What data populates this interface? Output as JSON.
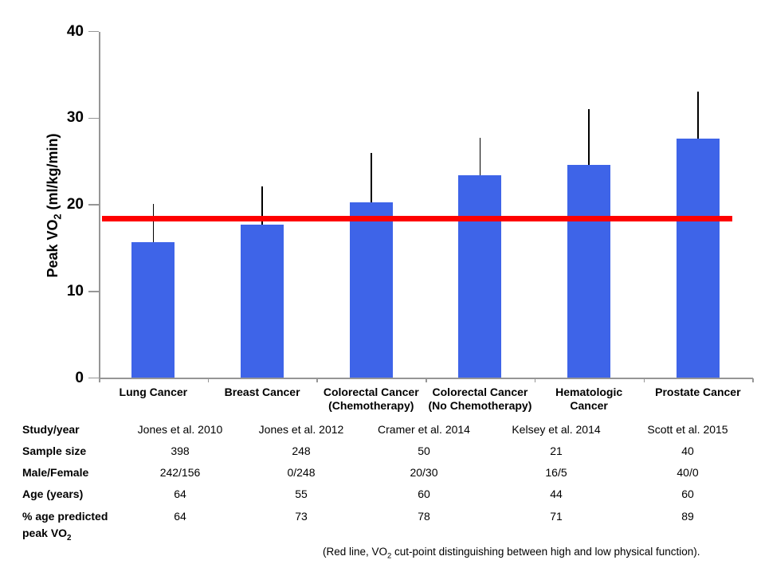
{
  "chart_data": {
    "type": "bar",
    "title": "",
    "xlabel": "",
    "ylabel": "Peak VO2 (ml/kg/min)",
    "ylim": [
      0,
      40
    ],
    "y_ticks": [
      0,
      10,
      20,
      30,
      40
    ],
    "grid": false,
    "legend": "none",
    "bar_color": "#3E64E8",
    "error_bar_color": "#000000",
    "axis_color": "#969696",
    "categories": [
      "Lung Cancer",
      "Breast Cancer",
      "Colorectal Cancer (Chemotherapy)",
      "Colorectal Cancer (No Chemotherapy)",
      "Hematologic Cancer",
      "Prostate Cancer"
    ],
    "category_lines": [
      [
        "Lung Cancer"
      ],
      [
        "Breast Cancer"
      ],
      [
        "Colorectal Cancer",
        "(Chemotherapy)"
      ],
      [
        "Colorectal Cancer",
        "(No Chemotherapy)"
      ],
      [
        "Hematologic",
        "Cancer"
      ],
      [
        "Prostate Cancer"
      ]
    ],
    "values": [
      15.7,
      17.7,
      20.3,
      23.4,
      24.6,
      27.6
    ],
    "error_upper": [
      20.1,
      22.1,
      26.0,
      27.7,
      31.0,
      33.1
    ],
    "reference_line": {
      "value": 18.4,
      "color": "#FE0000"
    }
  },
  "table": {
    "row_headers": [
      [
        "Study/year"
      ],
      [
        "Sample size"
      ],
      [
        "Male/Female"
      ],
      [
        "Age (years)"
      ],
      [
        "% age predicted",
        "peak VO2"
      ]
    ],
    "column_keys": [
      "study_year",
      "sample_size",
      "male_female",
      "age_years",
      "pct_age_predicted_peak_vo2"
    ],
    "columns": [
      {
        "study_year": "Jones et al. 2010",
        "sample_size": "398",
        "male_female": "242/156",
        "age_years": "64",
        "pct_age_predicted_peak_vo2": "64"
      },
      {
        "study_year": "Jones et al. 2012",
        "sample_size": "248",
        "male_female": "0/248",
        "age_years": "55",
        "pct_age_predicted_peak_vo2": "73"
      },
      {
        "study_year": "Cramer et al. 2014",
        "sample_size": "50",
        "male_female": "20/30",
        "age_years": "60",
        "pct_age_predicted_peak_vo2": "78"
      },
      {
        "study_year": "Kelsey et al. 2014",
        "sample_size": "21",
        "male_female": "16/5",
        "age_years": "44",
        "pct_age_predicted_peak_vo2": "71"
      },
      {
        "study_year": "Scott et al. 2015",
        "sample_size": "40",
        "male_female": "40/0",
        "age_years": "60",
        "pct_age_predicted_peak_vo2": "89"
      }
    ]
  },
  "caption": {
    "text": "(Red line, VO2 cut-point distinguishing between high and low physical function)."
  }
}
